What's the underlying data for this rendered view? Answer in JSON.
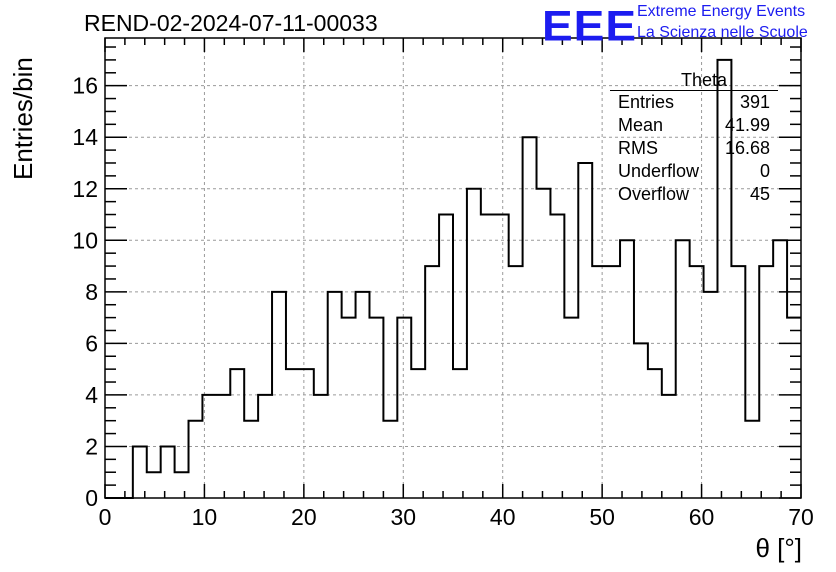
{
  "title": "REND-02-2024-07-11-00033",
  "logo": {
    "mark": "EEE",
    "line1": "Extreme Energy Events",
    "line2": "La Scienza nelle Scuole",
    "color": "#1c1cf0"
  },
  "stats": {
    "name": "Theta",
    "rows": [
      {
        "label": "Entries",
        "value": "391"
      },
      {
        "label": "Mean",
        "value": "41.99"
      },
      {
        "label": "RMS",
        "value": "16.68"
      },
      {
        "label": "Underflow",
        "value": "0"
      },
      {
        "label": "Overflow",
        "value": "45"
      }
    ]
  },
  "chart_data": {
    "type": "bar",
    "histogram": true,
    "xlabel": "θ [°]",
    "ylabel": "Entries/bin",
    "xlim": [
      0,
      70
    ],
    "ylim": [
      0,
      17.85
    ],
    "grid": true,
    "xticks": [
      0,
      10,
      20,
      30,
      40,
      50,
      60,
      70
    ],
    "yticks": [
      0,
      2,
      4,
      6,
      8,
      10,
      12,
      14,
      16
    ],
    "bin_width": 1.4,
    "bin_edges_start": 0,
    "values": [
      0,
      0,
      2,
      1,
      2,
      1,
      3,
      4,
      4,
      5,
      3,
      4,
      8,
      5,
      5,
      4,
      8,
      7,
      8,
      7,
      3,
      7,
      5,
      9,
      11,
      5,
      12,
      11,
      11,
      9,
      14,
      12,
      11,
      7,
      13,
      9,
      9,
      10,
      6,
      5,
      4,
      10,
      9,
      8,
      17,
      9,
      3,
      9,
      10,
      7
    ]
  }
}
